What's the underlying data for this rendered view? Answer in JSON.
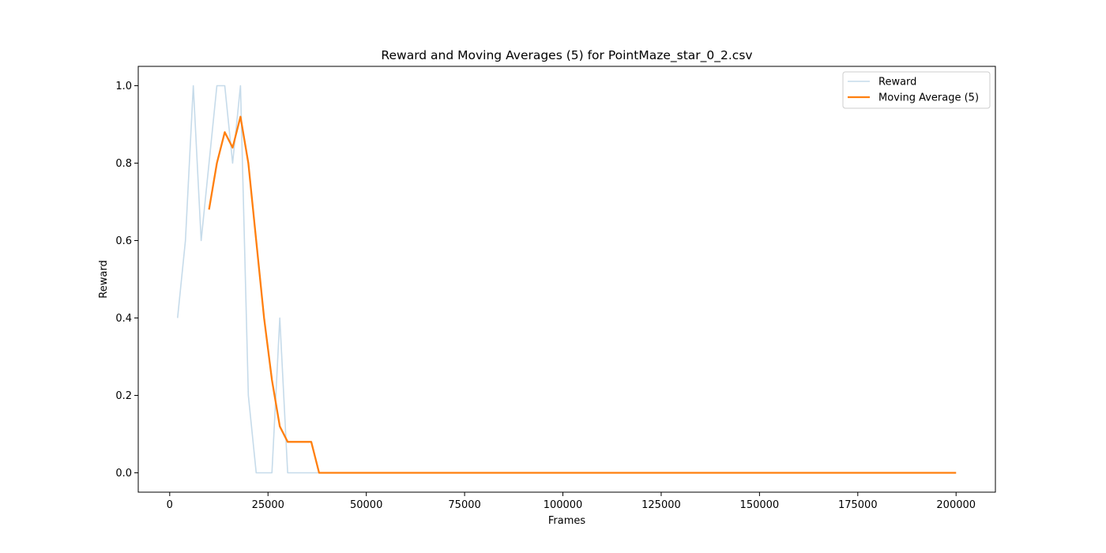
{
  "chart_data": {
    "type": "line",
    "title": "Reward and Moving Averages (5) for PointMaze_star_0_2.csv",
    "xlabel": "Frames",
    "ylabel": "Reward",
    "xlim": [
      -8000,
      210000
    ],
    "ylim": [
      -0.05,
      1.05
    ],
    "xticks": [
      0,
      25000,
      50000,
      75000,
      100000,
      125000,
      150000,
      175000,
      200000
    ],
    "xtick_labels": [
      "0",
      "25000",
      "50000",
      "75000",
      "100000",
      "125000",
      "150000",
      "175000",
      "200000"
    ],
    "yticks": [
      0.0,
      0.2,
      0.4,
      0.6,
      0.8,
      1.0
    ],
    "ytick_labels": [
      "0.0",
      "0.2",
      "0.4",
      "0.6",
      "0.8",
      "1.0"
    ],
    "grid": false,
    "legend_position": "top-right",
    "series": [
      {
        "name": "Reward",
        "color": "#c6dbea",
        "x": [
          2000,
          4000,
          6000,
          8000,
          10000,
          12000,
          14000,
          16000,
          18000,
          20000,
          22000,
          24000,
          26000,
          28000,
          30000,
          32000,
          34000,
          36000,
          38000,
          40000,
          200000
        ],
        "y": [
          0.4,
          0.6,
          1.0,
          0.6,
          0.8,
          1.0,
          1.0,
          0.8,
          1.0,
          0.2,
          0.0,
          0.0,
          0.0,
          0.4,
          0.0,
          0.0,
          0.0,
          0.0,
          0.0,
          0.0,
          0.0
        ]
      },
      {
        "name": "Moving Average (5)",
        "color": "#ff7f0e",
        "x": [
          10000,
          12000,
          14000,
          16000,
          18000,
          20000,
          22000,
          24000,
          26000,
          28000,
          30000,
          32000,
          34000,
          36000,
          38000,
          40000,
          200000
        ],
        "y": [
          0.68,
          0.8,
          0.88,
          0.84,
          0.92,
          0.8,
          0.6,
          0.4,
          0.24,
          0.12,
          0.08,
          0.08,
          0.08,
          0.08,
          0.0,
          0.0,
          0.0
        ]
      }
    ]
  }
}
